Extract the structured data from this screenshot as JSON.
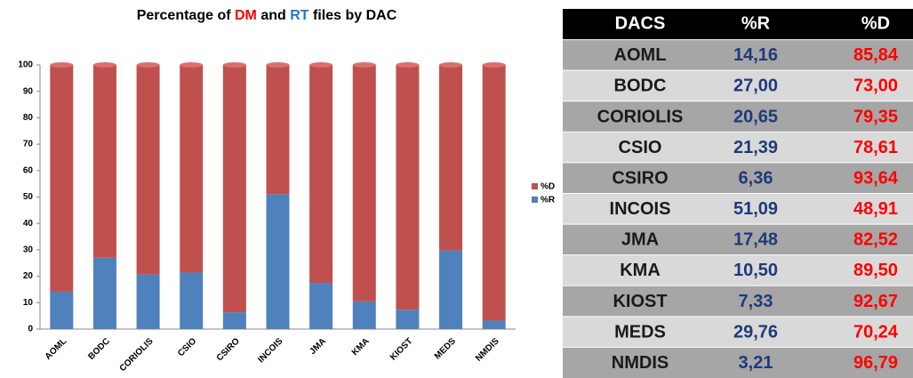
{
  "chart_data": {
    "type": "bar",
    "stacked": true,
    "title_parts": [
      {
        "text": "Percentage of ",
        "color": "#000000"
      },
      {
        "text": "DM",
        "color": "#ff0000"
      },
      {
        "text": " and ",
        "color": "#000000"
      },
      {
        "text": "RT",
        "color": "#1f77c8"
      },
      {
        "text": " files by DAC",
        "color": "#000000"
      }
    ],
    "categories": [
      "AOML",
      "BODC",
      "CORIOLIS",
      "CSIO",
      "CSIRO",
      "INCOIS",
      "JMA",
      "KMA",
      "KIOST",
      "MEDS",
      "NMDIS"
    ],
    "series": [
      {
        "name": "%R",
        "color": "#4f81bd",
        "values": [
          14.16,
          27.0,
          20.65,
          21.39,
          6.36,
          51.09,
          17.48,
          10.5,
          7.33,
          29.76,
          3.21
        ]
      },
      {
        "name": "%D",
        "color": "#c0504d",
        "values": [
          85.84,
          73.0,
          79.35,
          78.61,
          93.64,
          48.91,
          82.52,
          89.5,
          92.67,
          70.24,
          96.79
        ]
      }
    ],
    "ylim": [
      0,
      100
    ],
    "yticks": [
      0,
      10,
      20,
      30,
      40,
      50,
      60,
      70,
      80,
      90,
      100
    ],
    "grid": false,
    "legend": "right"
  },
  "table": {
    "header": [
      "DACS",
      "%R",
      "%D"
    ],
    "header_color": "#000000",
    "column_colors": [
      "#1a1a1a",
      "#1f3a7a",
      "#ff0000"
    ],
    "row_colors": [
      "#a6a6a6",
      "#d9d9d9"
    ],
    "rows": [
      [
        "AOML",
        "14,16",
        "85,84"
      ],
      [
        "BODC",
        "27,00",
        "73,00"
      ],
      [
        "CORIOLIS",
        "20,65",
        "79,35"
      ],
      [
        "CSIO",
        "21,39",
        "78,61"
      ],
      [
        "CSIRO",
        "6,36",
        "93,64"
      ],
      [
        "INCOIS",
        "51,09",
        "48,91"
      ],
      [
        "JMA",
        "17,48",
        "82,52"
      ],
      [
        "KMA",
        "10,50",
        "89,50"
      ],
      [
        "KIOST",
        "7,33",
        "92,67"
      ],
      [
        "MEDS",
        "29,76",
        "70,24"
      ],
      [
        "NMDIS",
        "3,21",
        "96,79"
      ]
    ]
  }
}
